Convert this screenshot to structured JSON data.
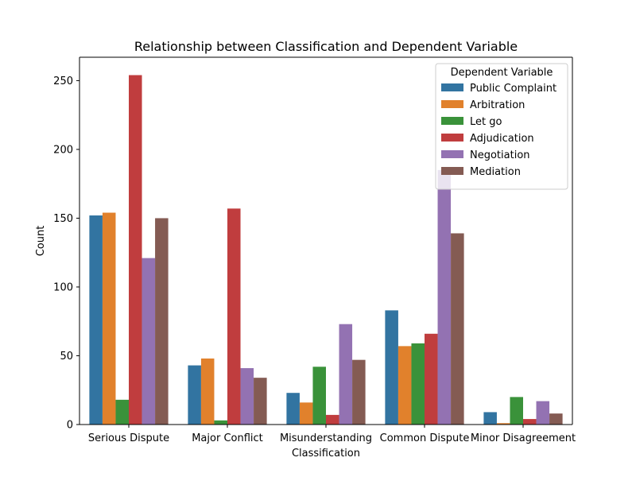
{
  "chart_data": {
    "type": "bar",
    "title": "Relationship between Classification and Dependent Variable",
    "xlabel": "Classification",
    "ylabel": "Count",
    "ylim": [
      0,
      267
    ],
    "yticks": [
      0,
      50,
      100,
      150,
      200,
      250
    ],
    "categories": [
      "Serious Dispute",
      "Major Conflict",
      "Misunderstanding",
      "Common Dispute",
      "Minor Disagreement"
    ],
    "legend": {
      "title": "Dependent Variable",
      "placement": "top-right"
    },
    "grid": false,
    "series": [
      {
        "name": "Public Complaint",
        "color": "#3274a1",
        "values": [
          152,
          43,
          23,
          83,
          9
        ]
      },
      {
        "name": "Arbitration",
        "color": "#e1812c",
        "values": [
          154,
          48,
          16,
          57,
          1
        ]
      },
      {
        "name": "Let go",
        "color": "#3a923a",
        "values": [
          18,
          3,
          42,
          59,
          20
        ]
      },
      {
        "name": "Adjudication",
        "color": "#c03d3e",
        "values": [
          254,
          157,
          7,
          66,
          4
        ]
      },
      {
        "name": "Negotiation",
        "color": "#9372b2",
        "values": [
          121,
          41,
          73,
          185,
          17
        ]
      },
      {
        "name": "Mediation",
        "color": "#845b53",
        "values": [
          150,
          34,
          47,
          139,
          8
        ]
      }
    ]
  }
}
